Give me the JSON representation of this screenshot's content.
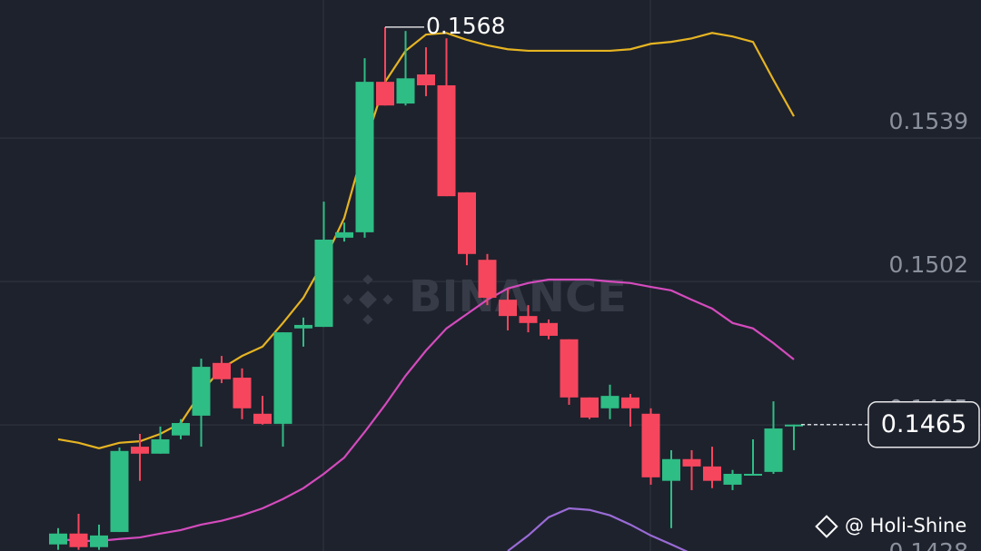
{
  "chart_data": {
    "type": "candlestick",
    "watermark": "BINANCE",
    "credit": "@ Holi-Shine",
    "ylim": [
      0.14325,
      0.15746
    ],
    "yticks": [
      0.1539,
      0.1502,
      0.1465,
      0.1428
    ],
    "grid": true,
    "up_color": "#2ebd85",
    "down_color": "#f6465d",
    "open": [
      0.14342,
      0.1437,
      0.14335,
      0.14374,
      0.14594,
      0.14576,
      0.14623,
      0.14674,
      0.1481,
      0.14772,
      0.14679,
      0.14653,
      0.14899,
      0.14903,
      0.15133,
      0.15147,
      0.15535,
      0.15479,
      0.15554,
      0.15526,
      0.1525,
      0.15076,
      0.14973,
      0.14931,
      0.14913,
      0.14871,
      0.14721,
      0.14693,
      0.14721,
      0.14679,
      0.14506,
      0.14562,
      0.14543,
      0.14496,
      0.1452,
      0.14529,
      0.14649
    ],
    "high": [
      0.14384,
      0.14421,
      0.14393,
      0.14592,
      0.14627,
      0.14646,
      0.14665,
      0.14821,
      0.14828,
      0.14796,
      0.14725,
      0.14889,
      0.14927,
      0.15226,
      0.15172,
      0.15596,
      0.15676,
      0.15666,
      0.15624,
      0.15647,
      0.1525,
      0.15091,
      0.15002,
      0.14959,
      0.14922,
      0.14871,
      0.14721,
      0.14754,
      0.1473,
      0.14693,
      0.14585,
      0.14585,
      0.14594,
      0.14534,
      0.14613,
      0.14711,
      0.14651
    ],
    "low": [
      0.14328,
      0.14328,
      0.14328,
      0.14374,
      0.14506,
      0.14576,
      0.14613,
      0.14594,
      0.14758,
      0.14665,
      0.14651,
      0.14594,
      0.14852,
      0.14903,
      0.15123,
      0.15133,
      0.15474,
      0.15474,
      0.15498,
      0.1524,
      0.15062,
      0.14959,
      0.14894,
      0.14889,
      0.14871,
      0.14702,
      0.14665,
      0.14665,
      0.14646,
      0.14496,
      0.14384,
      0.14482,
      0.14487,
      0.14482,
      0.1452,
      0.14524,
      0.14585
    ],
    "close": [
      0.1437,
      0.14335,
      0.14365,
      0.14583,
      0.14576,
      0.14613,
      0.14655,
      0.148,
      0.14768,
      0.14693,
      0.14653,
      0.14889,
      0.14908,
      0.15128,
      0.15147,
      0.15535,
      0.15474,
      0.15544,
      0.15526,
      0.1524,
      0.15091,
      0.14978,
      0.14931,
      0.14913,
      0.1488,
      0.14721,
      0.14669,
      0.14725,
      0.14693,
      0.14515,
      0.14562,
      0.14543,
      0.14506,
      0.14524,
      0.14524,
      0.14641,
      0.14651
    ],
    "bands": [
      {
        "color": "#e6b422",
        "values": [
          0.14613,
          0.14604,
          0.1459,
          0.14604,
          0.14608,
          0.14627,
          0.14655,
          0.14735,
          0.14796,
          0.14828,
          0.14852,
          0.14913,
          0.14978,
          0.15072,
          0.15184,
          0.15371,
          0.15535,
          0.15615,
          0.15657,
          0.15661,
          0.15643,
          0.15629,
          0.15619,
          0.15615,
          0.15615,
          0.15615,
          0.15615,
          0.15615,
          0.15619,
          0.15633,
          0.15638,
          0.15647,
          0.15661,
          0.15652,
          0.15638,
          0.1554,
          0.15446
        ]
      },
      {
        "color": "#d44bbd",
        "values": [
          0.14356,
          0.14351,
          0.14351,
          0.14356,
          0.1436,
          0.1437,
          0.14379,
          0.14393,
          0.14403,
          0.14417,
          0.14435,
          0.14459,
          0.14487,
          0.14524,
          0.14566,
          0.14632,
          0.14702,
          0.14777,
          0.14842,
          0.14899,
          0.14936,
          0.14973,
          0.15002,
          0.15016,
          0.15025,
          0.15025,
          0.15025,
          0.1502,
          0.15016,
          0.15006,
          0.14997,
          0.14973,
          0.1495,
          0.14913,
          0.14899,
          0.14861,
          0.14819
        ]
      },
      {
        "color": "#9a6bd6",
        "values": [
          null,
          null,
          null,
          null,
          null,
          null,
          null,
          null,
          null,
          null,
          null,
          null,
          null,
          null,
          null,
          null,
          null,
          null,
          null,
          null,
          null,
          null,
          0.14325,
          0.14365,
          0.14412,
          0.14435,
          0.14431,
          0.14417,
          0.14393,
          0.14365,
          0.14342,
          0.14318,
          null,
          null,
          null,
          null,
          null
        ]
      }
    ],
    "high_annotation": {
      "value": 0.15676,
      "label": "0.1568"
    },
    "last_price": {
      "value": 0.14651,
      "label": "0.1465"
    }
  }
}
